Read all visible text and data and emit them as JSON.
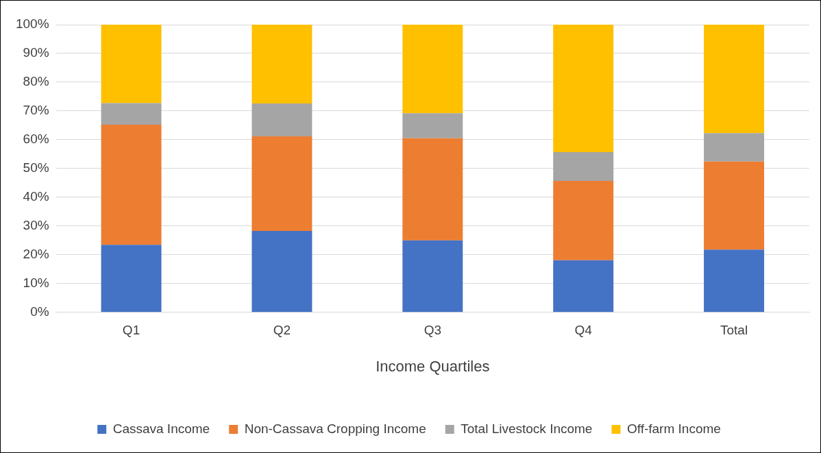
{
  "chart_data": {
    "type": "bar",
    "stacked": true,
    "xlabel": "Income Quartiles",
    "categories": [
      "Q1",
      "Q2",
      "Q3",
      "Q4",
      "Total"
    ],
    "series": [
      {
        "name": "Cassava Income",
        "color": "#4472c4",
        "values": [
          23.5,
          28.3,
          25.0,
          18.1,
          21.8
        ]
      },
      {
        "name": "Non-Cassava Cropping Income",
        "color": "#ed7d31",
        "values": [
          41.7,
          32.9,
          35.5,
          27.6,
          30.6
        ]
      },
      {
        "name": "Total Livestock Income",
        "color": "#a5a5a5",
        "values": [
          7.5,
          11.4,
          8.7,
          10.0,
          9.9
        ]
      },
      {
        "name": "Off-farm Income",
        "color": "#ffc000",
        "values": [
          27.3,
          27.4,
          30.8,
          44.3,
          37.7
        ]
      }
    ],
    "ylim": [
      0,
      100
    ],
    "yticks": [
      {
        "value": 0,
        "label": "0%"
      },
      {
        "value": 10,
        "label": "10%"
      },
      {
        "value": 20,
        "label": "20%"
      },
      {
        "value": 30,
        "label": "30%"
      },
      {
        "value": 40,
        "label": "40%"
      },
      {
        "value": 50,
        "label": "50%"
      },
      {
        "value": 60,
        "label": "60%"
      },
      {
        "value": 70,
        "label": "70%"
      },
      {
        "value": 80,
        "label": "80%"
      },
      {
        "value": 90,
        "label": "90%"
      },
      {
        "value": 100,
        "label": "100%"
      }
    ],
    "grid": "y",
    "legend": "bottom"
  }
}
